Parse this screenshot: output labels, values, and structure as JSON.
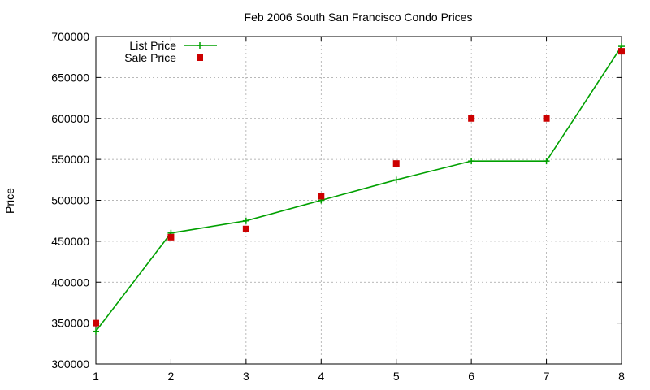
{
  "chart_data": {
    "type": "line",
    "title": "Feb 2006 South San Francisco Condo Prices",
    "xlabel": "",
    "ylabel": "Price",
    "x": [
      1,
      2,
      3,
      4,
      5,
      6,
      7,
      8
    ],
    "xlim": [
      1,
      8
    ],
    "ylim": [
      300000,
      700000
    ],
    "xticks": [
      "1",
      "2",
      "3",
      "4",
      "5",
      "6",
      "7",
      "8"
    ],
    "yticks": [
      "300000",
      "350000",
      "400000",
      "450000",
      "500000",
      "550000",
      "600000",
      "650000",
      "700000"
    ],
    "grid": true,
    "legend_position": "top-left",
    "series": [
      {
        "name": "List Price",
        "style": "line-with-plus-markers",
        "color": "#00a000",
        "values": [
          340000,
          460000,
          475000,
          500000,
          525000,
          548000,
          548000,
          688000
        ]
      },
      {
        "name": "Sale Price",
        "style": "square-markers",
        "color": "#cc0000",
        "values": [
          350000,
          455000,
          465000,
          505000,
          545000,
          600000,
          600000,
          682000
        ]
      }
    ]
  }
}
